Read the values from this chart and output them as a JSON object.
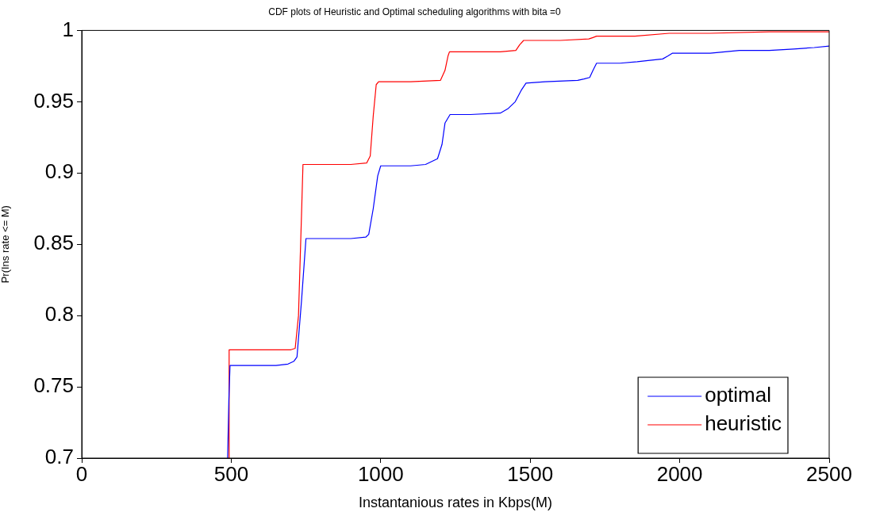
{
  "chart_data": {
    "type": "line",
    "title": "CDF plots of Heuristic and Optimal scheduling algorithms with bita =0",
    "xlabel": "Instantanious rates in Kbps(M)",
    "ylabel": "Pr(Ins rate <= M)",
    "xlim": [
      0,
      2500
    ],
    "xticks": [
      0,
      500,
      1000,
      1500,
      2000,
      2500
    ],
    "ylim": [
      0.7,
      1
    ],
    "yticks": [
      0.7,
      0.75,
      0.8,
      0.85,
      0.9,
      0.95,
      1
    ],
    "grid": false,
    "legend": "bottom right",
    "marker": "none",
    "line_style": "solid",
    "series": [
      {
        "name": "optimal",
        "color": "#0000ff",
        "x": [
          488,
          492,
          496,
          560,
          650,
          690,
          710,
          720,
          735,
          750,
          800,
          900,
          950,
          960,
          975,
          990,
          1000,
          1100,
          1150,
          1190,
          1205,
          1215,
          1232,
          1300,
          1400,
          1425,
          1450,
          1470,
          1486,
          1550,
          1659,
          1680,
          1699,
          1710,
          1722,
          1800,
          1858,
          1900,
          1943,
          1960,
          1975,
          2050,
          2102,
          2200,
          2300,
          2381,
          2450,
          2500
        ],
        "values": [
          0.7,
          0.74,
          0.765,
          0.765,
          0.765,
          0.766,
          0.768,
          0.771,
          0.81,
          0.854,
          0.854,
          0.854,
          0.855,
          0.857,
          0.875,
          0.898,
          0.905,
          0.905,
          0.906,
          0.91,
          0.92,
          0.935,
          0.941,
          0.941,
          0.942,
          0.945,
          0.95,
          0.958,
          0.963,
          0.964,
          0.965,
          0.966,
          0.967,
          0.972,
          0.977,
          0.977,
          0.978,
          0.979,
          0.98,
          0.982,
          0.984,
          0.984,
          0.984,
          0.986,
          0.986,
          0.987,
          0.988,
          0.989
        ]
      },
      {
        "name": "heuristic",
        "color": "#ff0000",
        "x": [
          491,
          493,
          600,
          700,
          714,
          725,
          735,
          740,
          800,
          900,
          953,
          965,
          975,
          985,
          993,
          1100,
          1200,
          1215,
          1225,
          1230,
          1300,
          1400,
          1452,
          1465,
          1478,
          1600,
          1696,
          1710,
          1722,
          1850,
          1965,
          2100,
          2300,
          2500
        ],
        "values": [
          0.7,
          0.776,
          0.776,
          0.776,
          0.777,
          0.8,
          0.87,
          0.906,
          0.906,
          0.906,
          0.907,
          0.912,
          0.94,
          0.962,
          0.964,
          0.964,
          0.965,
          0.972,
          0.982,
          0.985,
          0.985,
          0.985,
          0.986,
          0.99,
          0.993,
          0.993,
          0.994,
          0.995,
          0.996,
          0.996,
          0.998,
          0.998,
          0.999,
          0.999
        ]
      }
    ]
  }
}
